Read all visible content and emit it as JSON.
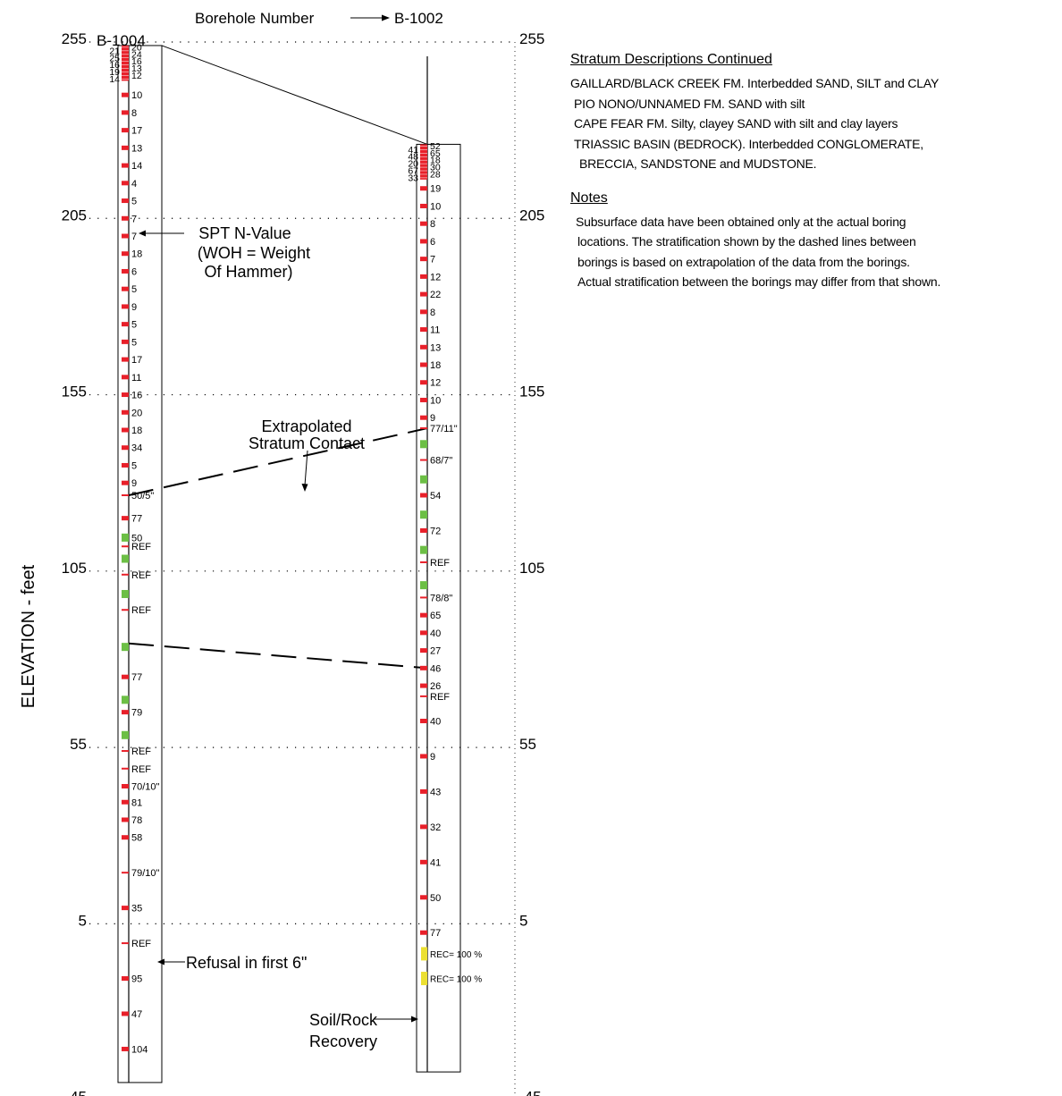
{
  "diagram": {
    "y_axis_label": "ELEVATION - feet",
    "elevation_ticks": [
      "255",
      "205",
      "155",
      "105",
      "55",
      "5",
      "-45"
    ],
    "borehole_number_label": "Borehole Number",
    "annotations": {
      "spt_n_value": [
        "SPT N-Value",
        "(WOH = Weight",
        "Of Hammer)"
      ],
      "extrapolated_contact": [
        "Extrapolated",
        "Stratum Contact"
      ],
      "refusal": "Refusal in first 6\"",
      "soil_rock_recovery": [
        "Soil/Rock",
        "Recovery"
      ]
    },
    "colors": {
      "spt_sample": "#e8202a",
      "rock_core_sample": "#6cbf45",
      "recovery_sample": "#ece032"
    },
    "boreholes": [
      {
        "id": "B-1004",
        "top_elevation": 254,
        "bottom_elevation": -40,
        "samples": [
          {
            "elev": 253.5,
            "value": "20",
            "type": "spt"
          },
          {
            "elev": 252.5,
            "value": "21",
            "type": "spt"
          },
          {
            "elev": 251.5,
            "value": "24",
            "type": "spt"
          },
          {
            "elev": 250.5,
            "value": "25",
            "type": "spt"
          },
          {
            "elev": 249.5,
            "value": "16",
            "type": "spt"
          },
          {
            "elev": 248.5,
            "value": "16",
            "type": "spt"
          },
          {
            "elev": 247.5,
            "value": "13",
            "type": "spt"
          },
          {
            "elev": 246.5,
            "value": "19",
            "type": "spt"
          },
          {
            "elev": 245.5,
            "value": "12",
            "type": "spt"
          },
          {
            "elev": 244.5,
            "value": "14",
            "type": "spt"
          },
          {
            "elev": 240,
            "value": "10",
            "type": "spt"
          },
          {
            "elev": 235,
            "value": "8",
            "type": "spt"
          },
          {
            "elev": 230,
            "value": "17",
            "type": "spt"
          },
          {
            "elev": 225,
            "value": "13",
            "type": "spt"
          },
          {
            "elev": 220,
            "value": "14",
            "type": "spt"
          },
          {
            "elev": 215,
            "value": "4",
            "type": "spt"
          },
          {
            "elev": 210,
            "value": "5",
            "type": "spt"
          },
          {
            "elev": 205,
            "value": "7",
            "type": "spt"
          },
          {
            "elev": 200,
            "value": "7",
            "type": "spt"
          },
          {
            "elev": 195,
            "value": "18",
            "type": "spt"
          },
          {
            "elev": 190,
            "value": "6",
            "type": "spt"
          },
          {
            "elev": 185,
            "value": "5",
            "type": "spt"
          },
          {
            "elev": 180,
            "value": "9",
            "type": "spt"
          },
          {
            "elev": 175,
            "value": "5",
            "type": "spt"
          },
          {
            "elev": 170,
            "value": "5",
            "type": "spt"
          },
          {
            "elev": 165,
            "value": "17",
            "type": "spt"
          },
          {
            "elev": 160,
            "value": "11",
            "type": "spt"
          },
          {
            "elev": 155,
            "value": "16",
            "type": "spt"
          },
          {
            "elev": 150,
            "value": "20",
            "type": "spt"
          },
          {
            "elev": 145,
            "value": "18",
            "type": "spt"
          },
          {
            "elev": 140,
            "value": "34",
            "type": "spt"
          },
          {
            "elev": 135,
            "value": "5",
            "type": "spt"
          },
          {
            "elev": 130,
            "value": "9",
            "type": "spt"
          },
          {
            "elev": 126.5,
            "value": "50/5\"",
            "type": "spt_partial"
          },
          {
            "elev": 120,
            "value": "77",
            "type": "spt"
          },
          {
            "elev": 114.5,
            "value": "50",
            "type": "rock"
          },
          {
            "elev": 112,
            "value": "REF",
            "type": "spt_partial"
          },
          {
            "elev": 108.5,
            "value": "",
            "type": "rock"
          },
          {
            "elev": 104,
            "value": "REF",
            "type": "spt_partial"
          },
          {
            "elev": 98.5,
            "value": "",
            "type": "rock"
          },
          {
            "elev": 94,
            "value": "REF",
            "type": "spt_partial"
          },
          {
            "elev": 83.5,
            "value": "",
            "type": "rock"
          },
          {
            "elev": 75,
            "value": "77",
            "type": "spt"
          },
          {
            "elev": 68.5,
            "value": "",
            "type": "rock"
          },
          {
            "elev": 65,
            "value": "79",
            "type": "spt"
          },
          {
            "elev": 58.5,
            "value": "",
            "type": "rock"
          },
          {
            "elev": 54,
            "value": "REF",
            "type": "spt_partial"
          },
          {
            "elev": 49,
            "value": "REF",
            "type": "spt_partial"
          },
          {
            "elev": 44,
            "value": "70/10\"",
            "type": "spt"
          },
          {
            "elev": 39.5,
            "value": "81",
            "type": "spt"
          },
          {
            "elev": 34.5,
            "value": "78",
            "type": "spt"
          },
          {
            "elev": 29.5,
            "value": "58",
            "type": "spt"
          },
          {
            "elev": 19.5,
            "value": "79/10\"",
            "type": "spt_partial"
          },
          {
            "elev": 9.5,
            "value": "35",
            "type": "spt"
          },
          {
            "elev": -0.5,
            "value": "REF",
            "type": "spt_partial"
          },
          {
            "elev": -10.5,
            "value": "95",
            "type": "spt"
          },
          {
            "elev": -20.5,
            "value": "47",
            "type": "spt"
          },
          {
            "elev": -30.5,
            "value": "104",
            "type": "spt"
          }
        ]
      },
      {
        "id": "B-1002",
        "top_elevation": 226,
        "bottom_elevation": -37,
        "samples": [
          {
            "elev": 225.5,
            "value": "52",
            "type": "spt"
          },
          {
            "elev": 224.5,
            "value": "41",
            "type": "spt"
          },
          {
            "elev": 223.5,
            "value": "65",
            "type": "spt"
          },
          {
            "elev": 222.5,
            "value": "48",
            "type": "spt"
          },
          {
            "elev": 221.5,
            "value": "18",
            "type": "spt"
          },
          {
            "elev": 220.5,
            "value": "20",
            "type": "spt"
          },
          {
            "elev": 219.5,
            "value": "30",
            "type": "spt"
          },
          {
            "elev": 218.5,
            "value": "67",
            "type": "spt"
          },
          {
            "elev": 217.5,
            "value": "28",
            "type": "spt"
          },
          {
            "elev": 216.5,
            "value": "33",
            "type": "spt"
          },
          {
            "elev": 213.5,
            "value": "19",
            "type": "spt"
          },
          {
            "elev": 208.5,
            "value": "10",
            "type": "spt"
          },
          {
            "elev": 203.5,
            "value": "8",
            "type": "spt"
          },
          {
            "elev": 198.5,
            "value": "6",
            "type": "spt"
          },
          {
            "elev": 193.5,
            "value": "7",
            "type": "spt"
          },
          {
            "elev": 188.5,
            "value": "12",
            "type": "spt"
          },
          {
            "elev": 183.5,
            "value": "22",
            "type": "spt"
          },
          {
            "elev": 178.5,
            "value": "8",
            "type": "spt"
          },
          {
            "elev": 173.5,
            "value": "11",
            "type": "spt"
          },
          {
            "elev": 168.5,
            "value": "13",
            "type": "spt"
          },
          {
            "elev": 163.5,
            "value": "18",
            "type": "spt"
          },
          {
            "elev": 158.5,
            "value": "12",
            "type": "spt"
          },
          {
            "elev": 153.5,
            "value": "10",
            "type": "spt"
          },
          {
            "elev": 148.5,
            "value": "9",
            "type": "spt"
          },
          {
            "elev": 145.5,
            "value": "77/11\"",
            "type": "spt_partial"
          },
          {
            "elev": 141,
            "value": "",
            "type": "rock"
          },
          {
            "elev": 136.5,
            "value": "68/7\"",
            "type": "spt_partial"
          },
          {
            "elev": 131,
            "value": "",
            "type": "rock"
          },
          {
            "elev": 126.5,
            "value": "54",
            "type": "spt"
          },
          {
            "elev": 121,
            "value": "",
            "type": "rock"
          },
          {
            "elev": 116.5,
            "value": "72",
            "type": "spt"
          },
          {
            "elev": 111,
            "value": "",
            "type": "rock"
          },
          {
            "elev": 107.5,
            "value": "REF",
            "type": "spt_partial"
          },
          {
            "elev": 101,
            "value": "",
            "type": "rock"
          },
          {
            "elev": 97.5,
            "value": "78/8\"",
            "type": "spt_partial"
          },
          {
            "elev": 92.5,
            "value": "65",
            "type": "spt"
          },
          {
            "elev": 87.5,
            "value": "40",
            "type": "spt"
          },
          {
            "elev": 82.5,
            "value": "27",
            "type": "spt"
          },
          {
            "elev": 77.5,
            "value": "46",
            "type": "spt"
          },
          {
            "elev": 72.5,
            "value": "26",
            "type": "spt"
          },
          {
            "elev": 69.5,
            "value": "REF",
            "type": "spt_partial"
          },
          {
            "elev": 62.5,
            "value": "40",
            "type": "spt"
          },
          {
            "elev": 52.5,
            "value": "9",
            "type": "spt"
          },
          {
            "elev": 42.5,
            "value": "43",
            "type": "spt"
          },
          {
            "elev": 32.5,
            "value": "32",
            "type": "spt"
          },
          {
            "elev": 22.5,
            "value": "41",
            "type": "spt"
          },
          {
            "elev": 12.5,
            "value": "50",
            "type": "spt"
          },
          {
            "elev": 2.5,
            "value": "77",
            "type": "spt"
          },
          {
            "elev": -3.5,
            "value": "REC= 100 %",
            "type": "recovery"
          },
          {
            "elev": -10.5,
            "value": "REC= 100 %",
            "type": "recovery"
          }
        ]
      }
    ],
    "stratum_contacts": [
      {
        "style": "solid",
        "from": {
          "borehole": "B-1004",
          "elev": 254
        },
        "to": {
          "borehole": "B-1002",
          "elev": 226
        }
      },
      {
        "style": "dashed",
        "from": {
          "borehole": "B-1004",
          "elev": 126.5
        },
        "to": {
          "borehole": "B-1002",
          "elev": 145.5
        }
      },
      {
        "style": "dashed",
        "from": {
          "borehole": "B-1004",
          "elev": 84.5
        },
        "to": {
          "borehole": "B-1002",
          "elev": 77.5
        }
      }
    ]
  },
  "stratum_descriptions": {
    "heading": "Stratum Descriptions Continued",
    "lines": [
      "GAILLARD/BLACK CREEK FM. Interbedded SAND, SILT and CLAY",
      "PIO NONO/UNNAMED FM. SAND with silt",
      "CAPE FEAR FM. Silty, clayey SAND with silt and clay layers",
      "TRIASSIC BASIN (BEDROCK). Interbedded CONGLOMERATE,",
      "BRECCIA, SANDSTONE and MUDSTONE."
    ]
  },
  "notes": {
    "heading": "Notes",
    "lines": [
      "Subsurface data have been obtained only at the actual boring",
      "locations. The stratification shown by the dashed lines between",
      "borings is based on extrapolation of the data from the borings.",
      "Actual stratification between the borings may differ from that shown."
    ]
  }
}
